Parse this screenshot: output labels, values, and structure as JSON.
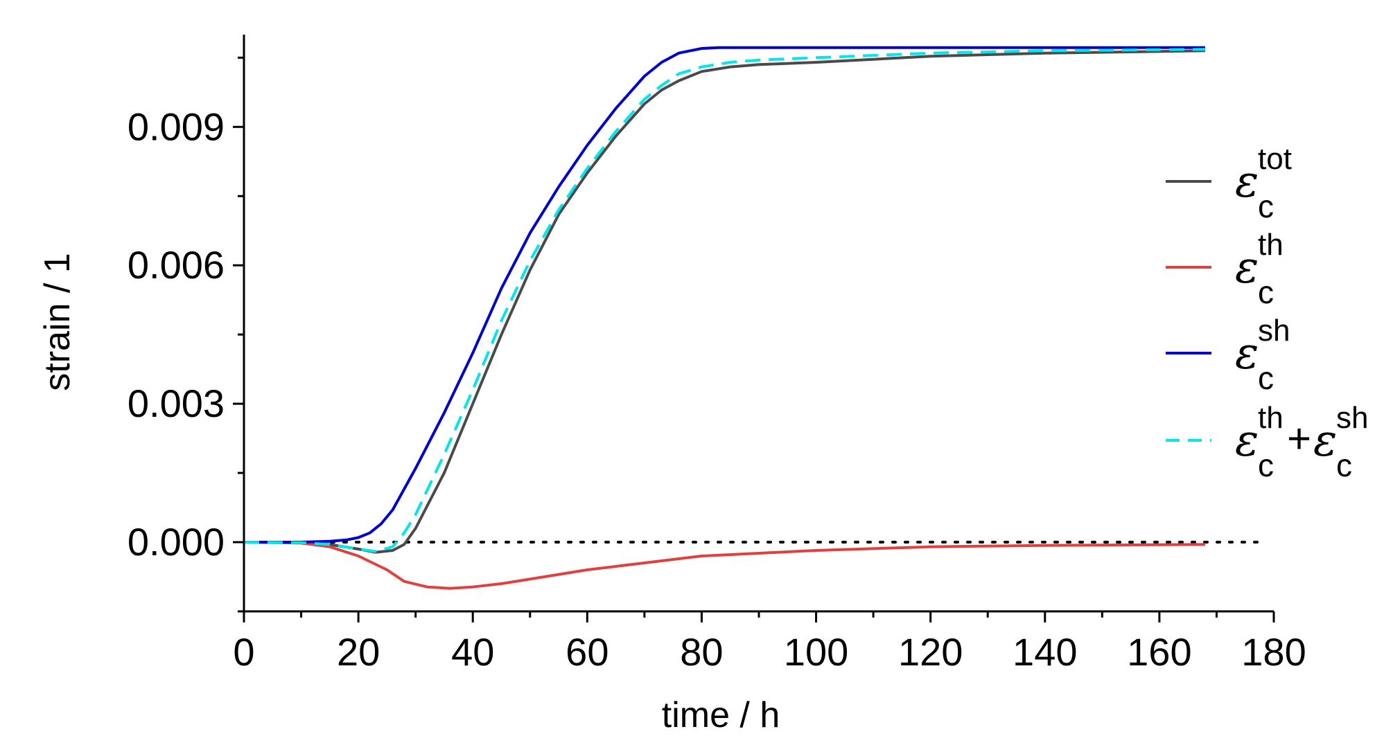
{
  "chart_data": {
    "type": "line",
    "xlabel": "time / h",
    "ylabel": "strain / 1",
    "xlim": [
      0,
      180
    ],
    "ylim": [
      -0.0015,
      0.011
    ],
    "xticks": [
      0,
      20,
      40,
      60,
      80,
      100,
      120,
      140,
      160,
      180
    ],
    "xtick_labels": [
      "0",
      "20",
      "40",
      "60",
      "80",
      "100",
      "120",
      "140",
      "160",
      "180"
    ],
    "yticks": [
      0.0,
      0.003,
      0.006,
      0.009
    ],
    "ytick_labels": [
      "0.000",
      "0.003",
      "0.006",
      "0.009"
    ],
    "grid": false,
    "legend_position": "right",
    "reference_line": {
      "y": 0,
      "style": "dotted",
      "color": "#000000"
    },
    "series": [
      {
        "key": "tot",
        "symbol": "ε",
        "sub": "c",
        "sup": "tot",
        "color": "#4a4a4a",
        "dash": "solid",
        "x": [
          0,
          10,
          15,
          20,
          23,
          26,
          28,
          30,
          35,
          40,
          45,
          50,
          55,
          60,
          65,
          70,
          73,
          76,
          80,
          85,
          90,
          100,
          120,
          140,
          168
        ],
        "y": [
          0,
          -1e-05,
          -5e-05,
          -0.00015,
          -0.00022,
          -0.00018,
          -5e-05,
          0.0003,
          0.0015,
          0.003,
          0.0045,
          0.0059,
          0.0071,
          0.008,
          0.0088,
          0.0095,
          0.0098,
          0.01,
          0.0102,
          0.0103,
          0.01035,
          0.0104,
          0.01053,
          0.0106,
          0.01065
        ]
      },
      {
        "key": "th",
        "symbol": "ε",
        "sub": "c",
        "sup": "th",
        "color": "#e04040",
        "dash": "solid",
        "x": [
          0,
          10,
          15,
          20,
          25,
          28,
          32,
          36,
          40,
          45,
          50,
          60,
          70,
          80,
          100,
          120,
          140,
          168
        ],
        "y": [
          0,
          -2e-05,
          -0.0001,
          -0.0003,
          -0.0006,
          -0.00085,
          -0.00097,
          -0.001,
          -0.00097,
          -0.0009,
          -0.0008,
          -0.0006,
          -0.00045,
          -0.0003,
          -0.00018,
          -0.0001,
          -7e-05,
          -5e-05
        ]
      },
      {
        "key": "sh",
        "symbol": "ε",
        "sub": "c",
        "sup": "sh",
        "color": "#0000cc",
        "dash": "solid",
        "x": [
          0,
          10,
          15,
          18,
          20,
          22,
          24,
          26,
          30,
          35,
          40,
          45,
          50,
          55,
          60,
          65,
          70,
          73,
          76,
          80,
          83,
          90,
          100,
          120,
          140,
          168
        ],
        "y": [
          0,
          0,
          2e-05,
          5e-05,
          0.0001,
          0.0002,
          0.0004,
          0.0007,
          0.0016,
          0.0028,
          0.0041,
          0.0055,
          0.0067,
          0.0077,
          0.0086,
          0.0094,
          0.0101,
          0.0104,
          0.0106,
          0.0107,
          0.01072,
          0.01072,
          0.01072,
          0.01072,
          0.01072,
          0.01072
        ]
      },
      {
        "key": "sum",
        "symbol": "ε",
        "sub": "c",
        "sup": "th",
        "sym2": "ε",
        "sub2": "c",
        "sup2": "sh",
        "color": "#00e5ee",
        "dash": "dashed",
        "x": [
          0,
          10,
          15,
          20,
          23,
          26,
          28,
          30,
          35,
          40,
          45,
          50,
          55,
          60,
          65,
          70,
          73,
          76,
          80,
          85,
          90,
          100,
          120,
          140,
          168
        ],
        "y": [
          0,
          -1e-05,
          -5e-05,
          -0.00015,
          -0.0002,
          -0.0001,
          0.0002,
          0.0006,
          0.0019,
          0.0033,
          0.0048,
          0.0061,
          0.0072,
          0.0081,
          0.0089,
          0.0096,
          0.0099,
          0.01015,
          0.0103,
          0.0104,
          0.01045,
          0.0105,
          0.0106,
          0.01065,
          0.01068
        ]
      }
    ]
  }
}
